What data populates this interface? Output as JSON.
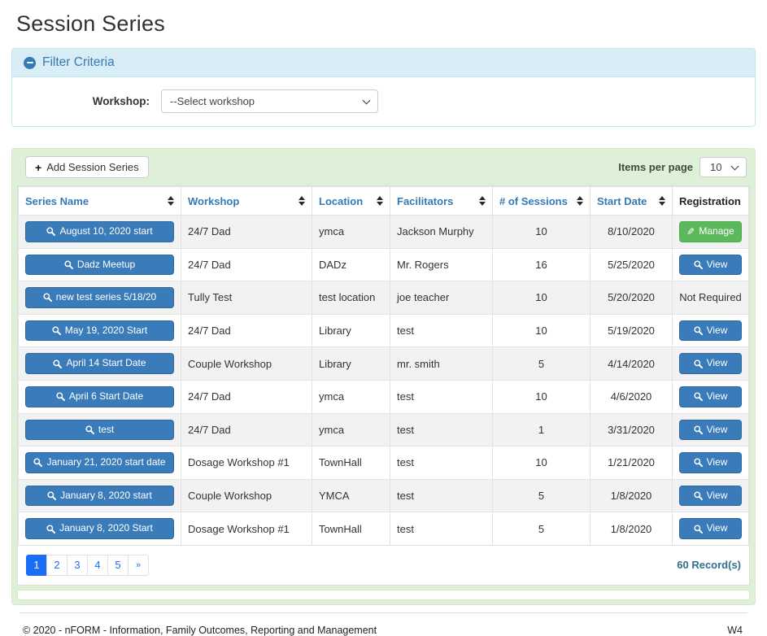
{
  "page": {
    "title": "Session Series"
  },
  "filter": {
    "title": "Filter Criteria",
    "collapse_icon": "minus-circle",
    "workshop_label": "Workshop:",
    "workshop_selected": "--Select workshop"
  },
  "toolbar": {
    "add_button_label": "Add Session Series",
    "add_button_icon": "plus",
    "items_per_page_label": "Items per page",
    "items_per_page_value": "10"
  },
  "table": {
    "columns": [
      {
        "label": "Series Name",
        "sortable": true
      },
      {
        "label": "Workshop",
        "sortable": true
      },
      {
        "label": "Location",
        "sortable": true
      },
      {
        "label": "Facilitators",
        "sortable": true
      },
      {
        "label": "# of Sessions",
        "sortable": true
      },
      {
        "label": "Start Date",
        "sortable": true
      },
      {
        "label": "Registration",
        "sortable": false
      }
    ],
    "rows": [
      {
        "series_name": "August 10, 2020 start",
        "workshop": "24/7 Dad",
        "location": "ymca",
        "facilitators": "Jackson Murphy",
        "sessions": "10",
        "start_date": "8/10/2020",
        "registration": "Manage",
        "registration_type": "manage"
      },
      {
        "series_name": "Dadz Meetup",
        "workshop": "24/7 Dad",
        "location": "DADz",
        "facilitators": "Mr. Rogers",
        "sessions": "16",
        "start_date": "5/25/2020",
        "registration": "View",
        "registration_type": "view"
      },
      {
        "series_name": "new test series 5/18/20",
        "workshop": "Tully Test",
        "location": "test location",
        "facilitators": "joe teacher",
        "sessions": "10",
        "start_date": "5/20/2020",
        "registration": "Not Required",
        "registration_type": "text"
      },
      {
        "series_name": "May 19, 2020 Start",
        "workshop": "24/7 Dad",
        "location": "Library",
        "facilitators": "test",
        "sessions": "10",
        "start_date": "5/19/2020",
        "registration": "View",
        "registration_type": "view"
      },
      {
        "series_name": "April 14 Start Date",
        "workshop": "Couple Workshop",
        "location": "Library",
        "facilitators": "mr. smith",
        "sessions": "5",
        "start_date": "4/14/2020",
        "registration": "View",
        "registration_type": "view"
      },
      {
        "series_name": "April 6 Start Date",
        "workshop": "24/7 Dad",
        "location": "ymca",
        "facilitators": "test",
        "sessions": "10",
        "start_date": "4/6/2020",
        "registration": "View",
        "registration_type": "view"
      },
      {
        "series_name": "test",
        "workshop": "24/7 Dad",
        "location": "ymca",
        "facilitators": "test",
        "sessions": "1",
        "start_date": "3/31/2020",
        "registration": "View",
        "registration_type": "view"
      },
      {
        "series_name": "January 21, 2020 start date",
        "workshop": "Dosage Workshop #1",
        "location": "TownHall",
        "facilitators": "test",
        "sessions": "10",
        "start_date": "1/21/2020",
        "registration": "View",
        "registration_type": "view"
      },
      {
        "series_name": "January 8, 2020 start",
        "workshop": "Couple Workshop",
        "location": "YMCA",
        "facilitators": "test",
        "sessions": "5",
        "start_date": "1/8/2020",
        "registration": "View",
        "registration_type": "view"
      },
      {
        "series_name": "January 8, 2020 Start",
        "workshop": "Dosage Workshop #1",
        "location": "TownHall",
        "facilitators": "test",
        "sessions": "5",
        "start_date": "1/8/2020",
        "registration": "View",
        "registration_type": "view"
      }
    ],
    "row_button_icon": "search",
    "manage_button_icon": "pencil",
    "view_button_icon": "search"
  },
  "pagination": {
    "pages": [
      "1",
      "2",
      "3",
      "4",
      "5"
    ],
    "active_page": "1",
    "next_label": "»",
    "record_count": "60 Record(s)"
  },
  "footer": {
    "copyright": "© 2020 - nFORM - Information, Family Outcomes, Reporting and Management",
    "version": "W4"
  },
  "colors": {
    "accent_blue": "#337ab7",
    "filter_header_bg": "#d9edf7",
    "filter_border": "#bce8f1",
    "panel_green_bg": "#dff0d8",
    "panel_green_border": "#d6e9c6",
    "manage_green": "#5cb85c",
    "pagination_blue": "#1b6ef3",
    "stripe_gray": "#f2f2f2",
    "record_count_color": "#31708f"
  }
}
